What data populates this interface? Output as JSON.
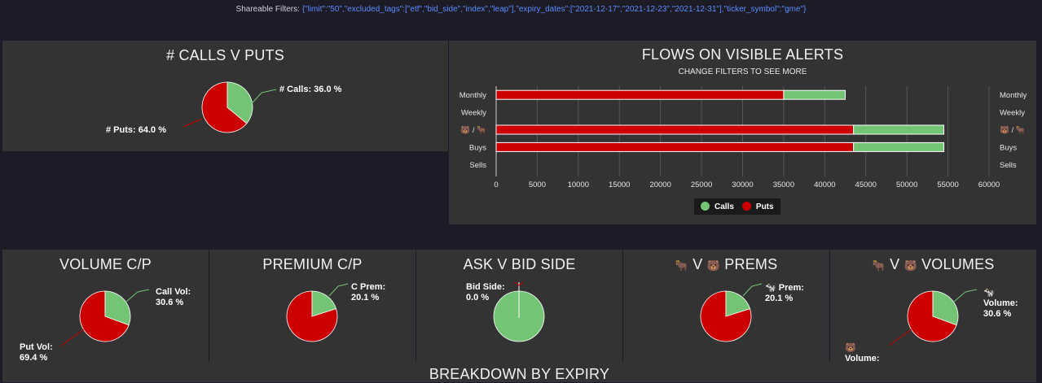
{
  "shareable_filters": {
    "label": "Shareable Filters:",
    "value": "{\"limit\":\"50\",\"excluded_tags\":[\"etf\",\"bid_side\",\"index\",\"leap\"],\"expiry_dates\":[\"2021-12-17\",\"2021-12-23\",\"2021-12-31\"],\"ticker_symbol\":\"gme\"}"
  },
  "colors": {
    "calls": "#74c476",
    "puts": "#cc0000",
    "panel": "#333333",
    "page": "#1c1b26"
  },
  "calls_v_puts": {
    "title": "# CALLS V PUTS",
    "calls_label": "# Calls: 36.0 %",
    "puts_label": "# Puts: 64.0 %",
    "calls_pct": 36.0
  },
  "flows": {
    "title": "FLOWS ON VISIBLE ALERTS",
    "subtitle": "CHANGE FILTERS TO SEE MORE",
    "legend_calls": "Calls",
    "legend_puts": "Puts",
    "chart_data": {
      "type": "bar",
      "orientation": "horizontal",
      "stacked": true,
      "categories": [
        "Monthly",
        "Weekly",
        "🐻/🐂",
        "Buys",
        "Sells"
      ],
      "category_labels": [
        "Monthly",
        "Weekly",
        "🐻 / 🐂",
        "Buys",
        "Sells"
      ],
      "series": [
        {
          "name": "Puts",
          "color": "#cc0000",
          "values": [
            35000,
            0,
            43500,
            43500,
            0
          ]
        },
        {
          "name": "Calls",
          "color": "#74c476",
          "values": [
            7500,
            0,
            11000,
            11000,
            0
          ]
        }
      ],
      "xlim": [
        0,
        60000
      ],
      "xticks": [
        "0",
        "5000",
        "10000",
        "15000",
        "20000",
        "25000",
        "30000",
        "35000",
        "40000",
        "45000",
        "50000",
        "55000",
        "60000"
      ],
      "grid": true,
      "legend": "bottom-center"
    }
  },
  "volume_cp": {
    "title": "VOLUME C/P",
    "call_label_1": "Call Vol:",
    "call_label_2": "30.6 %",
    "put_label_1": "Put Vol:",
    "put_label_2": "69.4 %",
    "calls_pct": 30.6
  },
  "premium_cp": {
    "title": "PREMIUM C/P",
    "call_label_1": "C Prem:",
    "call_label_2": "20.1 %",
    "calls_pct": 20.1
  },
  "ask_bid": {
    "title": "ASK V BID SIDE",
    "bid_label_1": "Bid Side:",
    "bid_label_2": "0.0 %",
    "bid_pct": 0.0
  },
  "prems": {
    "title_emoji_1": "🐂",
    "title_v": "V",
    "title_emoji_2": "🐻",
    "title_text": "PREMS",
    "label_emoji": "🐄",
    "label_1": "Prem:",
    "label_2": "20.1 %",
    "calls_pct": 20.1
  },
  "volumes": {
    "title_emoji_1": "🐂",
    "title_v": "V",
    "title_emoji_2": "🐻",
    "title_text": "VOLUMES",
    "label_emoji": "🐄",
    "label_1": "Volume:",
    "label_2": "30.6 %",
    "bear_emoji": "🐻",
    "bear_label_1": "Volume:",
    "calls_pct": 30.6
  },
  "breakdown": {
    "title": "BREAKDOWN BY EXPIRY"
  }
}
